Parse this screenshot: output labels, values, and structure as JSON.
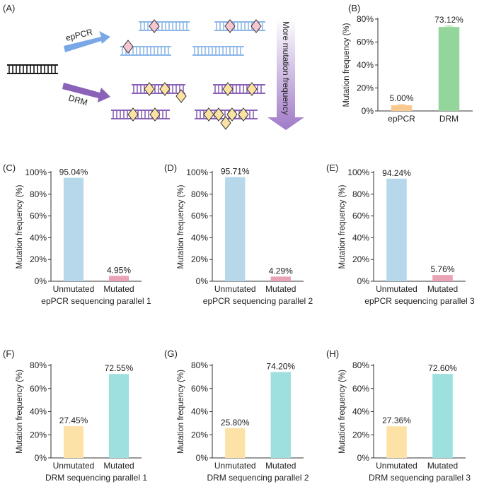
{
  "panel_a": {
    "label": "(A)",
    "branch_top": "epPCR",
    "branch_bottom": "DRM",
    "arrow_text": "More mutation frequency",
    "colors": {
      "epPCR_dna": "#8db8e8",
      "epPCR_arrow": "#7aa8e6",
      "DRM_dna": "#8a62b8",
      "DRM_arrow": "#8a62b8",
      "epPCR_mutation": "#f6c6d2",
      "DRM_mutation": "#fbe2a4",
      "template": "#1a1a1a"
    }
  },
  "chart_data": [
    {
      "panel": "(B)",
      "type": "bar",
      "categories": [
        "epPCR",
        "DRM"
      ],
      "values": [
        5.0,
        73.12
      ],
      "data_labels": [
        "5.00%",
        "73.12%"
      ],
      "colors": [
        "#f8c98e",
        "#93d59a"
      ],
      "error": [
        0.6,
        0.8
      ],
      "ylabel": "Mutation frequency (%)",
      "xlabel": "",
      "ylim": [
        0,
        80
      ],
      "yticks": [
        0,
        20,
        40,
        60,
        80
      ],
      "ytick_labels": [
        "0%",
        "20%",
        "40%",
        "60%",
        "80%"
      ]
    },
    {
      "panel": "(C)",
      "type": "bar",
      "categories": [
        "Unmutated",
        "Mutated"
      ],
      "values": [
        95.04,
        4.95
      ],
      "data_labels": [
        "95.04%",
        "4.95%"
      ],
      "colors": [
        "#b7d8ea",
        "#eaa3b5"
      ],
      "ylabel": "Mutation frequency (%)",
      "xlabel": "epPCR sequencing parallel 1",
      "ylim": [
        0,
        100
      ],
      "yticks": [
        0,
        20,
        40,
        60,
        80,
        100
      ],
      "ytick_labels": [
        "0%",
        "20%",
        "40%",
        "60%",
        "80%",
        "100%"
      ]
    },
    {
      "panel": "(D)",
      "type": "bar",
      "categories": [
        "Unmutated",
        "Mutated"
      ],
      "values": [
        95.71,
        4.29
      ],
      "data_labels": [
        "95.71%",
        "4.29%"
      ],
      "colors": [
        "#b7d8ea",
        "#eaa3b5"
      ],
      "ylabel": "Mutation frequency (%)",
      "xlabel": "epPCR sequencing parallel 2",
      "ylim": [
        0,
        100
      ],
      "yticks": [
        0,
        20,
        40,
        60,
        80,
        100
      ],
      "ytick_labels": [
        "0%",
        "20%",
        "40%",
        "60%",
        "80%",
        "100%"
      ]
    },
    {
      "panel": "(E)",
      "type": "bar",
      "categories": [
        "Unmutated",
        "Mutated"
      ],
      "values": [
        94.24,
        5.76
      ],
      "data_labels": [
        "94.24%",
        "5.76%"
      ],
      "colors": [
        "#b7d8ea",
        "#eaa3b5"
      ],
      "ylabel": "Mutation frequency (%)",
      "xlabel": "epPCR sequencing parallel 3",
      "ylim": [
        0,
        100
      ],
      "yticks": [
        0,
        20,
        40,
        60,
        80,
        100
      ],
      "ytick_labels": [
        "0%",
        "20%",
        "40%",
        "60%",
        "80%",
        "100%"
      ]
    },
    {
      "panel": "(F)",
      "type": "bar",
      "categories": [
        "Unmutated",
        "Mutated"
      ],
      "values": [
        27.45,
        72.55
      ],
      "data_labels": [
        "27.45%",
        "72.55%"
      ],
      "colors": [
        "#fde2a8",
        "#9edfe0"
      ],
      "ylabel": "Mutation frequency (%)",
      "xlabel": "DRM sequencing parallel 1",
      "ylim": [
        0,
        80
      ],
      "yticks": [
        0,
        20,
        40,
        60,
        80
      ],
      "ytick_labels": [
        "0%",
        "20%",
        "40%",
        "60%",
        "80%"
      ]
    },
    {
      "panel": "(G)",
      "type": "bar",
      "categories": [
        "Unmutated",
        "Mutated"
      ],
      "values": [
        25.8,
        74.2
      ],
      "data_labels": [
        "25.80%",
        "74.20%"
      ],
      "colors": [
        "#fde2a8",
        "#9edfe0"
      ],
      "ylabel": "Mutation frequency (%)",
      "xlabel": "DRM sequencing parallel 2",
      "ylim": [
        0,
        80
      ],
      "yticks": [
        0,
        20,
        40,
        60,
        80
      ],
      "ytick_labels": [
        "0%",
        "20%",
        "40%",
        "60%",
        "80%"
      ]
    },
    {
      "panel": "(H)",
      "type": "bar",
      "categories": [
        "Unmutated",
        "Mutated"
      ],
      "values": [
        27.36,
        72.6
      ],
      "data_labels": [
        "27.36%",
        "72.60%"
      ],
      "colors": [
        "#fde2a8",
        "#9edfe0"
      ],
      "ylabel": "Mutation frequency (%)",
      "xlabel": "DRM sequencing parallel 3",
      "ylim": [
        0,
        80
      ],
      "yticks": [
        0,
        20,
        40,
        60,
        80
      ],
      "ytick_labels": [
        "0%",
        "20%",
        "40%",
        "60%",
        "80%"
      ]
    }
  ]
}
